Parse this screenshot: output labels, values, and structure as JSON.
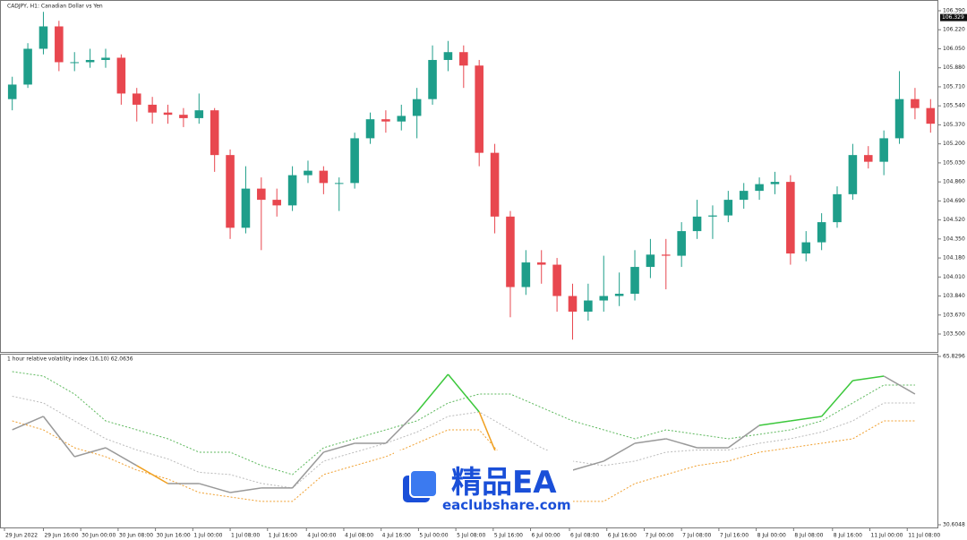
{
  "chart_data": [
    {
      "type": "candlestick",
      "title": "CADJPY, H1:  Canadian Dollar vs Yen",
      "open": [
        105.6,
        105.73,
        106.05,
        106.25,
        105.93,
        105.93,
        105.95,
        105.97,
        105.65,
        105.55,
        105.48,
        105.46,
        105.43,
        105.5,
        105.1,
        104.45,
        104.8,
        104.7,
        104.65,
        104.92,
        104.96,
        104.85,
        104.85,
        105.25,
        105.42,
        105.4,
        105.45,
        105.6,
        105.95,
        106.02,
        105.9,
        105.12,
        104.55,
        103.92,
        104.14,
        104.12,
        103.84,
        103.7,
        103.8,
        103.84,
        103.86,
        104.1,
        104.21,
        104.2,
        104.42,
        104.55,
        104.56,
        104.7,
        104.78,
        104.84,
        104.86,
        104.22,
        104.32,
        104.5,
        104.75,
        105.1,
        105.04,
        105.25,
        105.6,
        105.52
      ],
      "high": [
        105.8,
        106.1,
        106.38,
        106.3,
        106.02,
        106.05,
        106.05,
        106.0,
        105.7,
        105.62,
        105.55,
        105.52,
        105.65,
        105.52,
        105.15,
        105.0,
        104.9,
        104.8,
        105.0,
        105.05,
        105.0,
        104.9,
        105.3,
        105.48,
        105.5,
        105.55,
        105.7,
        106.08,
        106.12,
        106.08,
        105.95,
        105.2,
        104.6,
        104.25,
        104.25,
        104.18,
        103.95,
        103.95,
        104.2,
        104.05,
        104.25,
        104.35,
        104.35,
        104.5,
        104.7,
        104.65,
        104.78,
        104.85,
        104.9,
        104.95,
        104.92,
        104.42,
        104.58,
        104.82,
        105.2,
        105.18,
        105.32,
        105.85,
        105.7,
        105.6
      ],
      "low": [
        105.5,
        105.7,
        106.0,
        105.85,
        105.85,
        105.88,
        105.88,
        105.55,
        105.4,
        105.38,
        105.38,
        105.35,
        105.38,
        104.95,
        104.35,
        104.4,
        104.25,
        104.55,
        104.6,
        104.85,
        104.75,
        104.6,
        104.8,
        105.2,
        105.3,
        105.32,
        105.25,
        105.55,
        105.85,
        105.7,
        105.0,
        104.4,
        103.65,
        103.85,
        103.95,
        103.7,
        103.45,
        103.62,
        103.7,
        103.75,
        103.8,
        104.0,
        103.9,
        104.1,
        104.35,
        104.35,
        104.5,
        104.62,
        104.7,
        104.75,
        104.12,
        104.15,
        104.25,
        104.45,
        104.7,
        104.98,
        104.92,
        105.2,
        105.42,
        105.3
      ],
      "close": [
        105.73,
        106.05,
        106.25,
        105.93,
        105.93,
        105.95,
        105.97,
        105.65,
        105.55,
        105.48,
        105.46,
        105.43,
        105.5,
        105.1,
        104.45,
        104.8,
        104.7,
        104.65,
        104.92,
        104.96,
        104.85,
        104.85,
        105.25,
        105.42,
        105.4,
        105.45,
        105.6,
        105.95,
        106.02,
        105.9,
        105.12,
        104.55,
        103.92,
        104.14,
        104.12,
        103.84,
        103.7,
        103.8,
        103.84,
        103.86,
        104.1,
        104.21,
        104.2,
        104.42,
        104.55,
        104.56,
        104.7,
        104.78,
        104.84,
        104.86,
        104.22,
        104.32,
        104.5,
        104.75,
        105.1,
        105.04,
        105.25,
        105.6,
        105.52,
        105.38
      ],
      "up_color": "#1e9e8a",
      "down_color": "#e8474f",
      "xlim": [
        -0.5,
        59.5
      ],
      "xticks": [
        {
          "value": -0.5,
          "label": "29 Jun 2022"
        },
        {
          "value": 2.0,
          "label": "29 Jun 16:00"
        },
        {
          "value": 4.4,
          "label": "30 Jun 00:00"
        },
        {
          "value": 6.8,
          "label": "30 Jun 08:00"
        },
        {
          "value": 9.2,
          "label": "30 Jun 16:00"
        },
        {
          "value": 11.6,
          "label": "1 Jul 00:00"
        },
        {
          "value": 14.0,
          "label": "1 Jul 08:00"
        },
        {
          "value": 16.4,
          "label": "1 Jul 16:00"
        },
        {
          "value": 18.9,
          "label": "4 Jul 00:00"
        },
        {
          "value": 21.3,
          "label": "4 Jul 08:00"
        },
        {
          "value": 23.7,
          "label": "4 Jul 16:00"
        },
        {
          "value": 26.1,
          "label": "5 Jul 00:00"
        },
        {
          "value": 28.5,
          "label": "5 Jul 08:00"
        },
        {
          "value": 30.9,
          "label": "5 Jul 16:00"
        },
        {
          "value": 33.3,
          "label": "6 Jul 00:00"
        },
        {
          "value": 35.8,
          "label": "6 Jul 08:00"
        },
        {
          "value": 38.2,
          "label": "6 Jul 16:00"
        },
        {
          "value": 40.6,
          "label": "7 Jul 00:00"
        },
        {
          "value": 43.0,
          "label": "7 Jul 08:00"
        },
        {
          "value": 45.4,
          "label": "7 Jul 16:00"
        },
        {
          "value": 47.8,
          "label": "8 Jul 00:00"
        },
        {
          "value": 50.2,
          "label": "8 Jul 08:00"
        },
        {
          "value": 52.7,
          "label": "8 Jul 16:00"
        },
        {
          "value": 55.1,
          "label": "11 Jul 00:00"
        },
        {
          "value": 57.5,
          "label": "11 Jul 08:00"
        }
      ],
      "ylim": [
        103.34,
        106.47
      ],
      "yticks": [
        {
          "value": 106.39,
          "label": "106.390"
        },
        {
          "value": 106.22,
          "label": "106.220"
        },
        {
          "value": 106.05,
          "label": "106.050"
        },
        {
          "value": 105.88,
          "label": "105.880"
        },
        {
          "value": 105.71,
          "label": "105.710"
        },
        {
          "value": 105.54,
          "label": "105.540"
        },
        {
          "value": 105.37,
          "label": "105.370"
        },
        {
          "value": 105.2,
          "label": "105.200"
        },
        {
          "value": 105.03,
          "label": "105.030"
        },
        {
          "value": 104.86,
          "label": "104.860"
        },
        {
          "value": 104.69,
          "label": "104.690"
        },
        {
          "value": 104.52,
          "label": "104.520"
        },
        {
          "value": 104.35,
          "label": "104.350"
        },
        {
          "value": 104.18,
          "label": "104.180"
        },
        {
          "value": 104.01,
          "label": "104.010"
        },
        {
          "value": 103.84,
          "label": "103.840"
        },
        {
          "value": 103.67,
          "label": "103.670"
        },
        {
          "value": 103.5,
          "label": "103.500"
        }
      ],
      "current_price": 106.329
    },
    {
      "type": "line",
      "title": "1 hour relative volatility index (16,10) 62.0636",
      "x": [
        0,
        2,
        4,
        6,
        8,
        10,
        12,
        14,
        16,
        18,
        20,
        22,
        24,
        26,
        28,
        30,
        32,
        34,
        36,
        38,
        40,
        42,
        44,
        46,
        48,
        50,
        52,
        54,
        56,
        58
      ],
      "series": [
        {
          "color": "#5cb85c",
          "dash": "2,2",
          "values": [
            62.65,
            61.71,
            57.96,
            52.34,
            50.47,
            48.6,
            45.79,
            45.79,
            43.02,
            41.11,
            46.72,
            48.6,
            50.47,
            52.34,
            56.09,
            57.96,
            57.96,
            55.15,
            52.34,
            50.47,
            48.6,
            50.47,
            49.53,
            48.6,
            49.53,
            50.47,
            52.34,
            56.09,
            59.84,
            59.84
          ]
        },
        {
          "color": "#bbbbbb",
          "dash": "2,2",
          "values": [
            57.5,
            56.09,
            52.34,
            48.6,
            46.26,
            44.39,
            41.58,
            41.11,
            39.26,
            38.3,
            43.92,
            45.79,
            47.66,
            50.0,
            53.28,
            54.22,
            50.47,
            46.72,
            43.92,
            42.98,
            43.92,
            45.79,
            46.26,
            46.26,
            47.66,
            48.6,
            50.0,
            52.34,
            56.09,
            56.09
          ]
        },
        {
          "color": "#f0a030",
          "dash": "2,2",
          "values": [
            52.34,
            50.47,
            46.72,
            44.85,
            42.04,
            40.17,
            37.36,
            36.42,
            35.49,
            35.49,
            41.11,
            42.98,
            44.85,
            47.66,
            50.47,
            50.47,
            42.98,
            38.3,
            35.49,
            35.49,
            39.23,
            41.11,
            42.98,
            43.92,
            45.79,
            46.72,
            47.66,
            48.6,
            52.34,
            52.34
          ]
        },
        {
          "color": "#999999",
          "values": [
            50.47,
            53.28,
            44.85,
            46.72,
            42.98,
            39.23,
            39.23,
            37.36,
            38.3,
            38.3,
            45.79,
            47.66,
            47.66,
            54.22,
            62.08,
            54.22,
            38.3,
            38.3,
            42.04,
            43.92,
            47.66,
            48.6,
            46.72,
            46.72,
            51.41,
            52.34,
            53.28,
            60.77,
            61.71,
            57.96
          ]
        }
      ],
      "high_color": "#3cc83c",
      "low_color": "#f0a020",
      "ylim": [
        30.6048,
        65.8296
      ],
      "yticks": [
        65.8296,
        30.6048
      ]
    }
  ],
  "watermark": {
    "title": "精品EA",
    "url": "eaclubshare.com"
  }
}
